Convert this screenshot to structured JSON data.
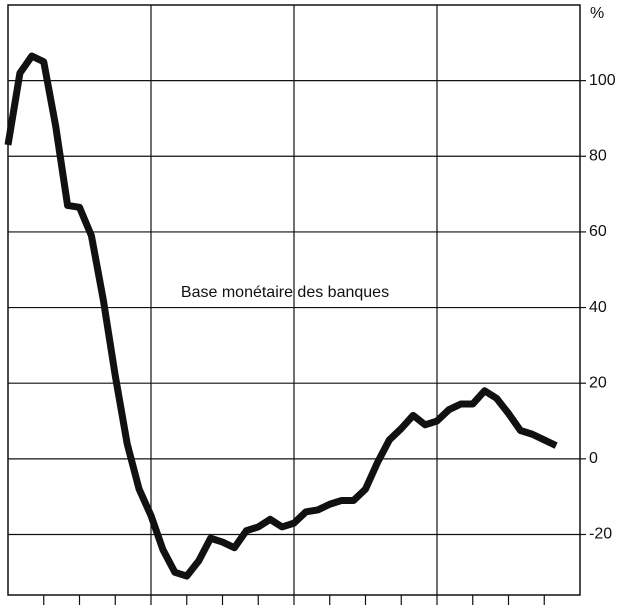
{
  "chart_data": {
    "type": "line",
    "annotation": "Base monétaire des banques",
    "y_axis_label": "%",
    "categories": [
      null,
      null,
      null,
      null,
      null,
      null,
      null,
      null,
      null,
      null,
      null,
      null,
      null,
      null,
      null,
      null,
      null,
      null,
      null,
      null,
      null,
      null,
      null,
      null,
      null,
      null,
      null,
      null,
      null,
      null,
      null,
      null,
      null,
      null,
      null,
      null,
      null,
      null,
      null,
      null,
      null,
      null,
      null,
      null,
      null,
      null,
      null
    ],
    "series": [
      {
        "color": "#111111",
        "values": [
          83,
          102,
          106.5,
          105,
          88,
          67,
          66.5,
          59,
          42,
          22,
          4,
          -8,
          -15,
          -24,
          -30,
          -31,
          -27,
          -21,
          -22,
          -23.5,
          -19,
          -18,
          -16,
          -18,
          -17,
          -14,
          -13.5,
          -12,
          -11,
          -11,
          -8,
          -1,
          5,
          8,
          11.5,
          9,
          10,
          13,
          14.5,
          14.5,
          18,
          16,
          12,
          7.5,
          6.5,
          5,
          3.5
        ]
      }
    ],
    "ylim": [
      -36,
      120
    ],
    "yticks": [
      -20,
      0,
      20,
      40,
      60,
      80,
      100
    ],
    "grid": true
  }
}
